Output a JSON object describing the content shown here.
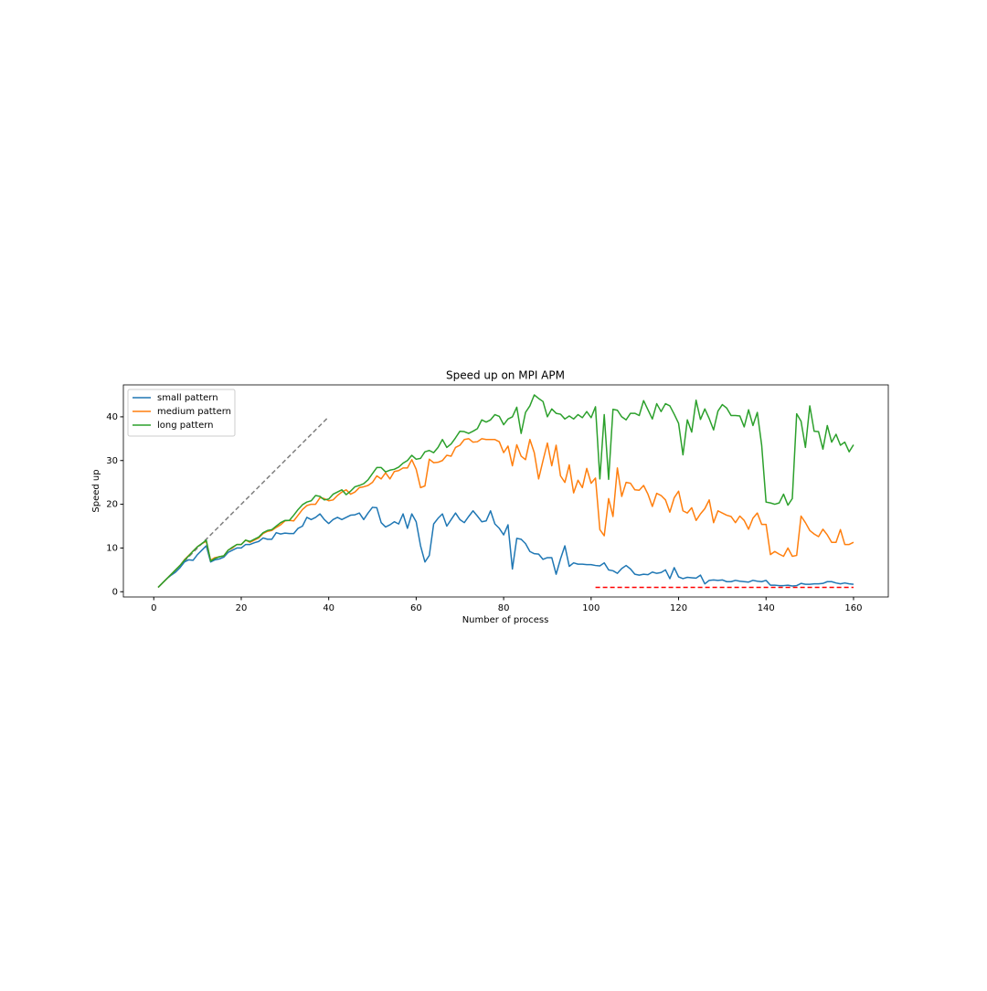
{
  "chart_data": {
    "type": "line",
    "title": "Speed up on MPI APM",
    "xlabel": "Number of process",
    "ylabel": "Speed up",
    "x": [
      1,
      2,
      3,
      4,
      5,
      6,
      7,
      8,
      9,
      10,
      11,
      12,
      13,
      14,
      15,
      16,
      17,
      18,
      19,
      20,
      21,
      22,
      23,
      24,
      25,
      26,
      27,
      28,
      29,
      30,
      31,
      32,
      33,
      34,
      35,
      36,
      37,
      38,
      39,
      40,
      41,
      42,
      43,
      44,
      45,
      46,
      47,
      48,
      49,
      50,
      51,
      52,
      53,
      54,
      55,
      56,
      57,
      58,
      59,
      60,
      61,
      62,
      63,
      64,
      65,
      66,
      67,
      68,
      69,
      70,
      71,
      72,
      73,
      74,
      75,
      76,
      77,
      78,
      79,
      80,
      81,
      82,
      83,
      84,
      85,
      86,
      87,
      88,
      89,
      90,
      91,
      92,
      93,
      94,
      95,
      96,
      97,
      98,
      99,
      100,
      101,
      102,
      103,
      104,
      105,
      106,
      107,
      108,
      109,
      110,
      111,
      112,
      113,
      114,
      115,
      116,
      117,
      118,
      119,
      120,
      121,
      122,
      123,
      124,
      125,
      126,
      127,
      128,
      129,
      130,
      131,
      132,
      133,
      134,
      135,
      136,
      137,
      138,
      139,
      140,
      141,
      142,
      143,
      144,
      145,
      146,
      147,
      148,
      149,
      150,
      151,
      152,
      153,
      154,
      155,
      156,
      157,
      158,
      159,
      160
    ],
    "series": [
      {
        "name": "small pattern",
        "color": "#1f77b4",
        "values": [
          1,
          2,
          3,
          3.8,
          4.5,
          5.5,
          6.8,
          7.3,
          7.2,
          8.5,
          9.5,
          10.5,
          6.8,
          7.3,
          7.5,
          7.9,
          9,
          9.5,
          10,
          10,
          10.8,
          10.8,
          11.2,
          11.5,
          12.3,
          12,
          12,
          13.5,
          13.2,
          13.4,
          13.3,
          13.3,
          14.5,
          15,
          17,
          16.5,
          17,
          17.8,
          16.5,
          15.6,
          16.5,
          17,
          16.5,
          17,
          17.5,
          17.6,
          18,
          16.5,
          18,
          19.3,
          19.2,
          15.8,
          14.8,
          15.3,
          16,
          15.5,
          17.8,
          14.5,
          17.8,
          16,
          10.5,
          6.8,
          8.3,
          15.5,
          16.8,
          17.8,
          15,
          16.5,
          18,
          16.5,
          15.8,
          17.2,
          18.5,
          17.3,
          16,
          16.2,
          18.5,
          15.5,
          14.5,
          13,
          15.3,
          5.2,
          12.2,
          12,
          11,
          9.2,
          8.7,
          8.6,
          7.4,
          7.8,
          7.8,
          4,
          7.5,
          10.5,
          5.8,
          6.6,
          6.3,
          6.3,
          6.2,
          6.2,
          6,
          5.9,
          6.6,
          5,
          4.8,
          4.2,
          5.3,
          6,
          5.2,
          4,
          3.8,
          4,
          3.9,
          4.5,
          4.2,
          4.4,
          5,
          3,
          5.5,
          3.4,
          3,
          3.3,
          3.2,
          3.1,
          3.8,
          1.8,
          2.6,
          2.7,
          2.6,
          2.7,
          2.3,
          2.3,
          2.6,
          2.4,
          2.3,
          2.2,
          2.6,
          2.4,
          2.3,
          2.6,
          1.5,
          1.5,
          1.4,
          1.4,
          1.5,
          1.3,
          1.4,
          1.9,
          1.7,
          1.7,
          1.8,
          1.8,
          1.9,
          2.3,
          2.3,
          2,
          1.8,
          2,
          1.8,
          1.7
        ]
      },
      {
        "name": "medium pattern",
        "color": "#ff7f0e",
        "values": [
          1,
          2,
          3,
          4,
          5,
          6,
          7.3,
          8.3,
          9.3,
          10.3,
          11,
          11.5,
          7.2,
          7.8,
          8,
          8.2,
          9.5,
          10,
          10.8,
          10.8,
          11.8,
          11.3,
          11.8,
          12.3,
          13.3,
          13.8,
          14,
          14.7,
          15.3,
          16.2,
          16.3,
          16.2,
          17.5,
          18.8,
          19.7,
          20,
          20,
          21.5,
          21.3,
          20.8,
          21,
          22,
          22.8,
          23.3,
          22.3,
          22.8,
          23.8,
          24,
          24.3,
          25,
          26.5,
          25.8,
          27.2,
          25.8,
          27.5,
          27.7,
          28.3,
          28.3,
          30.2,
          28,
          23.8,
          24.2,
          30.3,
          29.5,
          29.6,
          30,
          31.2,
          31,
          33,
          33.5,
          34.8,
          35,
          34.2,
          34.3,
          35,
          34.8,
          34.8,
          34.8,
          34.3,
          31.8,
          33.3,
          28.8,
          33.6,
          31,
          30.2,
          34.8,
          31.8,
          25.8,
          30,
          34,
          28.8,
          33.5,
          26.5,
          25,
          29,
          22.6,
          25.5,
          23.8,
          28.2,
          24.8,
          26,
          14.2,
          12.8,
          21.3,
          17.2,
          28.3,
          21.8,
          25,
          24.8,
          23.3,
          23.2,
          24.3,
          22.3,
          19.5,
          22.5,
          22,
          21,
          18.2,
          21.5,
          23,
          18.5,
          18,
          19.2,
          16.3,
          17.8,
          19,
          21,
          15.8,
          18.5,
          18,
          17.5,
          17.2,
          15.8,
          17.3,
          16.3,
          14.3,
          16.8,
          18,
          15.4,
          15.4,
          8.5,
          9.2,
          8.6,
          8.1,
          10,
          8.1,
          8.3,
          17.3,
          15.8,
          14,
          13.2,
          12.6,
          14.3,
          13,
          11.3,
          11.3,
          14.2,
          10.8,
          10.8,
          11.3
        ]
      },
      {
        "name": "long pattern",
        "color": "#2ca02c",
        "values": [
          1,
          2,
          3,
          4,
          5,
          6,
          7.2,
          8.2,
          9.3,
          10.3,
          11,
          11.8,
          7,
          7.6,
          8,
          8.2,
          9.5,
          10.2,
          10.8,
          10.8,
          11.8,
          11.5,
          12,
          12.5,
          13.5,
          14,
          14.2,
          15,
          15.8,
          16.3,
          16.3,
          17.5,
          18.8,
          19.9,
          20.5,
          20.8,
          22,
          21.8,
          21,
          21.2,
          22.3,
          22.8,
          23.3,
          22.2,
          23,
          24,
          24.3,
          24.7,
          25.6,
          27,
          28.4,
          28.4,
          27.4,
          27.8,
          28,
          28.5,
          29.4,
          30,
          31.2,
          30.3,
          30.5,
          32,
          32.3,
          31.8,
          33,
          34.8,
          33,
          33.8,
          35.2,
          36.7,
          36.6,
          36.2,
          36.7,
          37.3,
          39.3,
          38.8,
          39.3,
          40.5,
          40.1,
          38.2,
          39.5,
          40,
          42.2,
          36.2,
          41,
          42.5,
          45,
          44.2,
          43.5,
          40,
          41.8,
          40.8,
          40.6,
          39.5,
          40.2,
          39.5,
          40.5,
          39.8,
          41.2,
          39.8,
          42.3,
          25.8,
          40.5,
          25.7,
          41.7,
          41.5,
          40,
          39.3,
          40.8,
          40.8,
          40.3,
          43.7,
          41.6,
          39.5,
          43,
          41.2,
          43,
          42.5,
          40.6,
          38.5,
          31.3,
          39.3,
          36.5,
          43.8,
          39.4,
          41.8,
          39.6,
          37,
          41.3,
          42.8,
          42,
          40.3,
          40.3,
          40.2,
          37.7,
          41.6,
          38,
          41,
          33.5,
          20.5,
          20.3,
          20,
          20.3,
          22.3,
          19.8,
          21.3,
          40.7,
          39,
          33,
          42.5,
          36.7,
          36.6,
          32.6,
          38,
          34.2,
          36,
          33.5,
          34.2,
          32,
          33.6
        ]
      }
    ],
    "reference_lines": [
      {
        "x": [
          1,
          40
        ],
        "values": [
          1,
          40
        ],
        "color": "#7f7f7f",
        "dash": "dashed"
      },
      {
        "x": [
          101,
          160
        ],
        "values": [
          1,
          1
        ],
        "color": "#ff0000",
        "dash": "dashed"
      }
    ],
    "xlim": [
      -6.95,
      167.95
    ],
    "ylim": [
      -1.2,
      47.3
    ],
    "xticks": [
      0,
      20,
      40,
      60,
      80,
      100,
      120,
      140,
      160
    ],
    "yticks": [
      0,
      10,
      20,
      30,
      40
    ],
    "legend": "upper left"
  }
}
